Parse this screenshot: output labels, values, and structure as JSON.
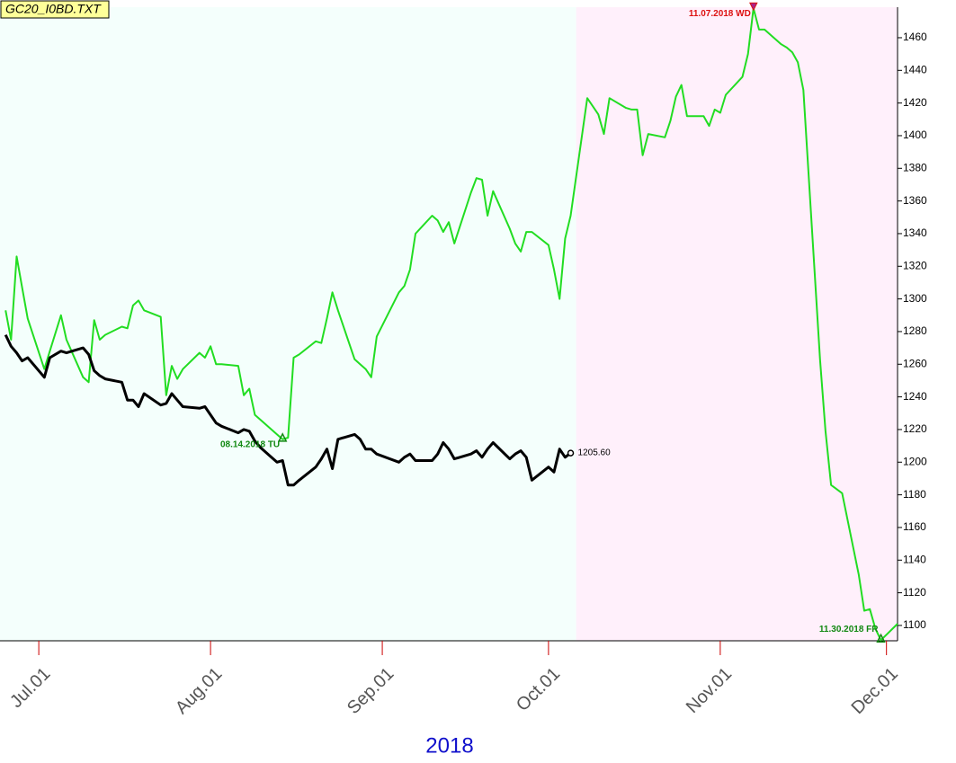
{
  "chart_data": {
    "type": "line",
    "title": "GC20_I0BD.TXT",
    "xlabel": "2018",
    "xlim": [
      "2018-06-24",
      "2018-12-03"
    ],
    "xticks": [
      {
        "value": "2018-07-01",
        "label": "Jul.01"
      },
      {
        "value": "2018-08-01",
        "label": "Aug.01"
      },
      {
        "value": "2018-09-01",
        "label": "Sep.01"
      },
      {
        "value": "2018-10-01",
        "label": "Oct.01"
      },
      {
        "value": "2018-11-01",
        "label": "Nov.01"
      },
      {
        "value": "2018-12-01",
        "label": "Dec.01"
      }
    ],
    "ylim": [
      1090.6,
      1478.7
    ],
    "yticks": [
      1100,
      1120,
      1140,
      1160,
      1180,
      1200,
      1220,
      1240,
      1260,
      1280,
      1300,
      1320,
      1340,
      1360,
      1380,
      1400,
      1420,
      1440,
      1460
    ],
    "regions": [
      {
        "start": "2018-06-24",
        "end": "2018-10-06",
        "color": "#f4fffc"
      },
      {
        "start": "2018-10-06",
        "end": "2018-12-03",
        "color": "#fff0fb"
      }
    ],
    "series": [
      {
        "color": "#22dd22",
        "x": [
          "2018-06-25",
          "2018-06-26",
          "2018-06-27",
          "2018-06-28",
          "2018-06-29",
          "2018-07-02",
          "2018-07-03",
          "2018-07-05",
          "2018-07-06",
          "2018-07-09",
          "2018-07-10",
          "2018-07-11",
          "2018-07-12",
          "2018-07-13",
          "2018-07-16",
          "2018-07-17",
          "2018-07-18",
          "2018-07-19",
          "2018-07-20",
          "2018-07-23",
          "2018-07-24",
          "2018-07-25",
          "2018-07-26",
          "2018-07-27",
          "2018-07-30",
          "2018-07-31",
          "2018-08-01",
          "2018-08-02",
          "2018-08-03",
          "2018-08-06",
          "2018-08-07",
          "2018-08-08",
          "2018-08-09",
          "2018-08-10",
          "2018-08-13",
          "2018-08-14",
          "2018-08-15",
          "2018-08-16",
          "2018-08-17",
          "2018-08-20",
          "2018-08-21",
          "2018-08-22",
          "2018-08-23",
          "2018-08-24",
          "2018-08-27",
          "2018-08-28",
          "2018-08-29",
          "2018-08-30",
          "2018-08-31",
          "2018-09-04",
          "2018-09-05",
          "2018-09-06",
          "2018-09-07",
          "2018-09-10",
          "2018-09-11",
          "2018-09-12",
          "2018-09-13",
          "2018-09-14",
          "2018-09-17",
          "2018-09-18",
          "2018-09-19",
          "2018-09-20",
          "2018-09-21",
          "2018-09-24",
          "2018-09-25",
          "2018-09-26",
          "2018-09-27",
          "2018-09-28",
          "2018-10-01",
          "2018-10-02",
          "2018-10-03",
          "2018-10-04",
          "2018-10-05",
          "2018-10-08",
          "2018-10-09",
          "2018-10-10",
          "2018-10-11",
          "2018-10-12",
          "2018-10-15",
          "2018-10-16",
          "2018-10-17",
          "2018-10-18",
          "2018-10-19",
          "2018-10-22",
          "2018-10-23",
          "2018-10-24",
          "2018-10-25",
          "2018-10-26",
          "2018-10-29",
          "2018-10-30",
          "2018-10-31",
          "2018-11-01",
          "2018-11-02",
          "2018-11-05",
          "2018-11-06",
          "2018-11-07",
          "2018-11-08",
          "2018-11-09",
          "2018-11-12",
          "2018-11-13",
          "2018-11-14",
          "2018-11-15",
          "2018-11-16",
          "2018-11-19",
          "2018-11-20",
          "2018-11-21",
          "2018-11-23",
          "2018-11-26",
          "2018-11-27",
          "2018-11-28",
          "2018-11-29",
          "2018-11-30",
          "2018-12-03"
        ],
        "values": [
          1293,
          1275,
          1326,
          1307,
          1288,
          1257,
          1268,
          1290,
          1275,
          1252,
          1249,
          1287,
          1275,
          1278,
          1283,
          1282,
          1296,
          1299,
          1293,
          1289,
          1241,
          1259,
          1251,
          1257,
          1267,
          1264,
          1271,
          1260,
          1260,
          1259,
          1241,
          1245,
          1229,
          1226,
          1217,
          1214,
          1215,
          1264,
          1266,
          1274,
          1273,
          1288,
          1304,
          1293,
          1263,
          1260,
          1257,
          1252,
          1277,
          1304,
          1308,
          1318,
          1340,
          1351,
          1348,
          1341,
          1347,
          1334,
          1365,
          1374,
          1373,
          1351,
          1366,
          1343,
          1334,
          1329,
          1341,
          1341,
          1333,
          1318,
          1300,
          1337,
          1351,
          1423,
          1418,
          1413,
          1401,
          1423,
          1417,
          1416,
          1416,
          1388,
          1401,
          1399,
          1409,
          1424,
          1431,
          1412,
          1412,
          1406,
          1416,
          1414,
          1425,
          1436,
          1450,
          1478,
          1465,
          1465,
          1456,
          1454,
          1451,
          1445,
          1428,
          1263,
          1219,
          1186,
          1181,
          1131,
          1109,
          1110,
          1098,
          1091,
          1101
        ]
      },
      {
        "color": "#000000",
        "x": [
          "2018-06-25",
          "2018-06-26",
          "2018-06-27",
          "2018-06-28",
          "2018-06-29",
          "2018-07-02",
          "2018-07-03",
          "2018-07-05",
          "2018-07-06",
          "2018-07-09",
          "2018-07-10",
          "2018-07-11",
          "2018-07-12",
          "2018-07-13",
          "2018-07-16",
          "2018-07-17",
          "2018-07-18",
          "2018-07-19",
          "2018-07-20",
          "2018-07-23",
          "2018-07-24",
          "2018-07-25",
          "2018-07-26",
          "2018-07-27",
          "2018-07-30",
          "2018-07-31",
          "2018-08-01",
          "2018-08-02",
          "2018-08-03",
          "2018-08-06",
          "2018-08-07",
          "2018-08-08",
          "2018-08-09",
          "2018-08-10",
          "2018-08-13",
          "2018-08-14",
          "2018-08-15",
          "2018-08-16",
          "2018-08-17",
          "2018-08-20",
          "2018-08-21",
          "2018-08-22",
          "2018-08-23",
          "2018-08-24",
          "2018-08-27",
          "2018-08-28",
          "2018-08-29",
          "2018-08-30",
          "2018-08-31",
          "2018-09-04",
          "2018-09-05",
          "2018-09-06",
          "2018-09-07",
          "2018-09-10",
          "2018-09-11",
          "2018-09-12",
          "2018-09-13",
          "2018-09-14",
          "2018-09-17",
          "2018-09-18",
          "2018-09-19",
          "2018-09-20",
          "2018-09-21",
          "2018-09-24",
          "2018-09-25",
          "2018-09-26",
          "2018-09-27",
          "2018-09-28",
          "2018-10-01",
          "2018-10-02",
          "2018-10-03",
          "2018-10-04",
          "2018-10-05"
        ],
        "values": [
          1278,
          1271,
          1267,
          1262,
          1264,
          1252,
          1264,
          1268,
          1267,
          1270,
          1266,
          1256,
          1253,
          1251,
          1249,
          1238,
          1238,
          1234,
          1242,
          1235,
          1236,
          1242,
          1238,
          1234,
          1233,
          1234,
          1229,
          1224,
          1222,
          1218,
          1220,
          1219,
          1213,
          1209,
          1200,
          1201,
          1186,
          1186,
          1189,
          1197,
          1202,
          1208,
          1196,
          1214,
          1217,
          1214,
          1208,
          1208,
          1205,
          1200,
          1203,
          1205,
          1201,
          1201,
          1205,
          1212,
          1208,
          1202,
          1205,
          1207,
          1203,
          1208,
          1212,
          1202,
          1205,
          1207,
          1203,
          1189,
          1197,
          1194,
          1208,
          1203,
          1205.6
        ],
        "value_labels": [
          null,
          null,
          null,
          null,
          null,
          null,
          null,
          null,
          null,
          null,
          null,
          null,
          null,
          null,
          null,
          null,
          null,
          null,
          null,
          null,
          null,
          null,
          null,
          null,
          null,
          null,
          null,
          null,
          null,
          null,
          null,
          null,
          null,
          null,
          null,
          null,
          null,
          null,
          null,
          null,
          null,
          null,
          null,
          null,
          null,
          null,
          null,
          null,
          null,
          null,
          null,
          null,
          null,
          null,
          null,
          null,
          null,
          null,
          null,
          null,
          null,
          null,
          null,
          null,
          null,
          null,
          null,
          null,
          null,
          null,
          null,
          null,
          "1205.60"
        ]
      }
    ],
    "annotations": [
      {
        "x": "2018-08-14",
        "label": "08.14.2018 TU",
        "color": "#118811",
        "marker": "up"
      },
      {
        "x": "2018-11-07",
        "label": "11.07.2018 WD",
        "color": "#dd1111",
        "marker": "down"
      },
      {
        "x": "2018-11-30",
        "label": "11.30.2018 FR",
        "color": "#118811",
        "marker": "up"
      }
    ]
  }
}
